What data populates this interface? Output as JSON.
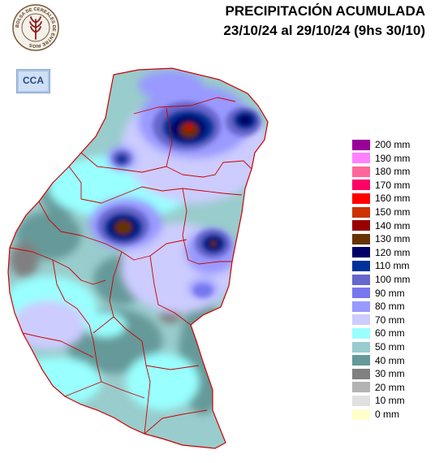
{
  "title": {
    "line1": "PRECIPITACIÓN ACUMULADA",
    "line2": "23/10/24 al 29/10/24 (9hs 30/10)"
  },
  "seal": {
    "icon": "bolsa-de-cereales-seal-icon",
    "text": "BOLSA DE CEREALES DE ENTRE RIOS"
  },
  "cca_logo": {
    "icon": "cca-logo-icon",
    "text": "CCA"
  },
  "legend": {
    "items": [
      {
        "label": "200 mm",
        "color": "#990099"
      },
      {
        "label": "190 mm",
        "color": "#ff80ff"
      },
      {
        "label": "180 mm",
        "color": "#ff6699"
      },
      {
        "label": "170 mm",
        "color": "#ff0066"
      },
      {
        "label": "160 mm",
        "color": "#ff0000"
      },
      {
        "label": "150 mm",
        "color": "#cc3300"
      },
      {
        "label": "140 mm",
        "color": "#990000"
      },
      {
        "label": "130 mm",
        "color": "#663300"
      },
      {
        "label": "120 mm",
        "color": "#000066"
      },
      {
        "label": "110 mm",
        "color": "#003399"
      },
      {
        "label": "100 mm",
        "color": "#6666cc"
      },
      {
        "label": "90 mm",
        "color": "#7777ee"
      },
      {
        "label": "80 mm",
        "color": "#9999ff"
      },
      {
        "label": "70 mm",
        "color": "#ccccff"
      },
      {
        "label": "60 mm",
        "color": "#99ffff"
      },
      {
        "label": "50 mm",
        "color": "#99cccc"
      },
      {
        "label": "40 mm",
        "color": "#669999"
      },
      {
        "label": "30 mm",
        "color": "#808080"
      },
      {
        "label": "20 mm",
        "color": "#b3b3b3"
      },
      {
        "label": "10 mm",
        "color": "#e0e0e0"
      },
      {
        "label": "0 mm",
        "color": "#ffffcc"
      }
    ]
  }
}
